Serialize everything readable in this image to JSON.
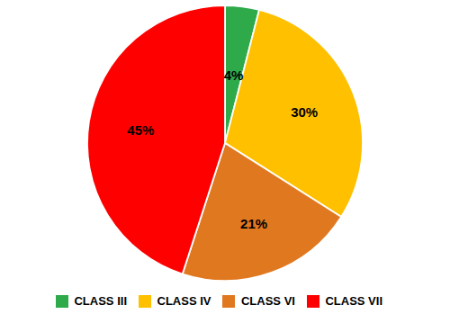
{
  "chart_data": {
    "type": "pie",
    "categories": [
      "CLASS III",
      "CLASS IV",
      "CLASS VI",
      "CLASS VII"
    ],
    "values": [
      4,
      30,
      21,
      45
    ],
    "value_labels": [
      "4%",
      "30%",
      "21%",
      "45%"
    ],
    "colors": [
      "#2eaa4a",
      "#ffc000",
      "#e07820",
      "#ff0000"
    ],
    "data_labels": true,
    "legend": "bottom"
  }
}
